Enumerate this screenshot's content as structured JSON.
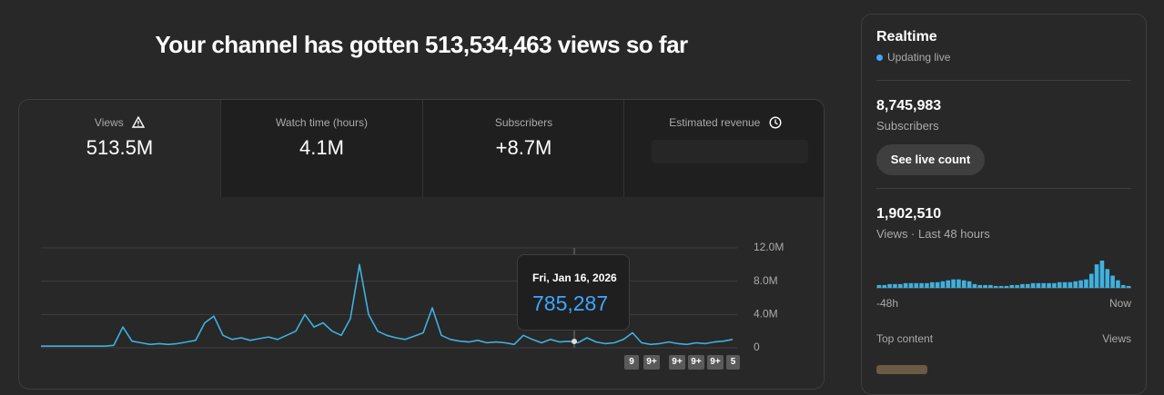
{
  "header": {
    "title": "Your channel has gotten 513,534,463 views so far"
  },
  "metrics": [
    {
      "label": "Views",
      "value": "513.5M"
    },
    {
      "label": "Watch time (hours)",
      "value": "4.1M"
    },
    {
      "label": "Subscribers",
      "value": "+8.7M"
    },
    {
      "label": "Estimated revenue"
    }
  ],
  "chart": {
    "type": "line",
    "color": "#3fb1de",
    "values": [
      200000,
      200000,
      200000,
      200000,
      200000,
      200000,
      200000,
      200000,
      300000,
      2500000,
      800000,
      600000,
      400000,
      500000,
      400000,
      500000,
      700000,
      900000,
      3000000,
      3800000,
      1500000,
      1000000,
      1200000,
      900000,
      1100000,
      1300000,
      1000000,
      1500000,
      2000000,
      4000000,
      2500000,
      3000000,
      2000000,
      1500000,
      3500000,
      10000000,
      4000000,
      2000000,
      1500000,
      1200000,
      1000000,
      1400000,
      1800000,
      4800000,
      1500000,
      1000000,
      800000,
      700000,
      900000,
      600000,
      700000,
      600000,
      400000,
      1500000,
      1000000,
      600000,
      1000000,
      700000,
      785287,
      600000,
      1200000,
      700000,
      500000,
      600000,
      1000000,
      1800000,
      600000,
      400000,
      500000,
      700000,
      500000,
      400000,
      600000,
      500000,
      700000,
      800000,
      1000000
    ],
    "ylim": [
      0,
      12000000
    ],
    "yticks": [
      0,
      {
        "value": 4000000,
        "label": "4.0M"
      },
      {
        "value": 8000000,
        "label": "8.0M"
      },
      {
        "value": 12000000,
        "label": "12.0M"
      }
    ],
    "grid": true
  },
  "tooltip": {
    "date": "Fri, Jan 16, 2026",
    "value": "785,287"
  },
  "badges": [
    "9",
    "9+",
    "9+",
    "9+",
    "9+",
    "5"
  ],
  "realtime": {
    "title": "Realtime",
    "status": "Updating live",
    "subscribers": "8,745,983",
    "subscribers_label": "Subscribers",
    "button": "See live count",
    "views": "1,902,510",
    "views_label": "Views · Last 48 hours",
    "bars": {
      "type": "bar",
      "color": "#3fb1de",
      "values": [
        3,
        3,
        4,
        4,
        4,
        5,
        5,
        5,
        5,
        5,
        6,
        6,
        7,
        8,
        9,
        9,
        8,
        7,
        4,
        3,
        3,
        3,
        2,
        2,
        2,
        3,
        3,
        4,
        4,
        5,
        5,
        5,
        5,
        5,
        6,
        6,
        6,
        7,
        8,
        9,
        15,
        25,
        29,
        20,
        13,
        8,
        3,
        2
      ]
    },
    "start": "-48h",
    "end": "Now",
    "top_content": "Top content",
    "top_content_metric": "Views"
  }
}
